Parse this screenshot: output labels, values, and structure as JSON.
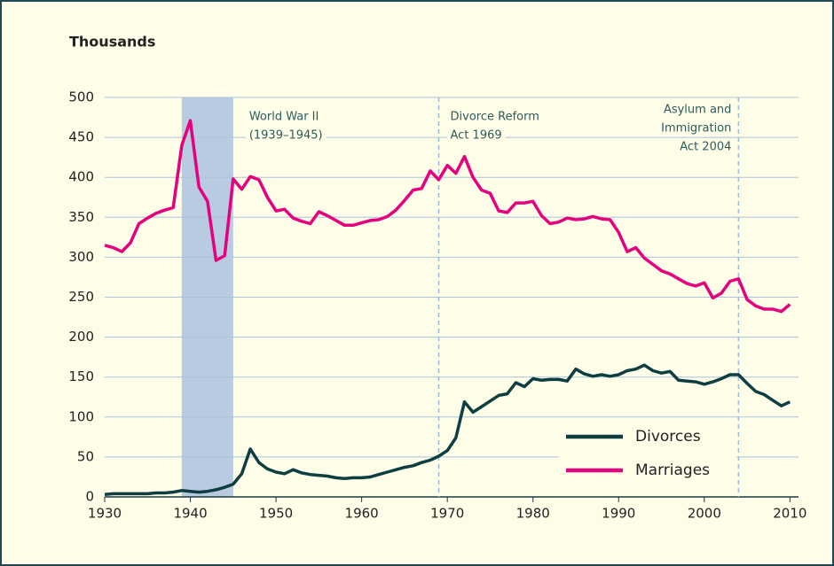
{
  "chart_data": {
    "type": "line",
    "title": "Thousands",
    "x": [
      1930,
      1931,
      1932,
      1933,
      1934,
      1935,
      1936,
      1937,
      1938,
      1939,
      1940,
      1941,
      1942,
      1943,
      1944,
      1945,
      1946,
      1947,
      1948,
      1949,
      1950,
      1951,
      1952,
      1953,
      1954,
      1955,
      1956,
      1957,
      1958,
      1959,
      1960,
      1961,
      1962,
      1963,
      1964,
      1965,
      1966,
      1967,
      1968,
      1969,
      1970,
      1971,
      1972,
      1973,
      1974,
      1975,
      1976,
      1977,
      1978,
      1979,
      1980,
      1981,
      1982,
      1983,
      1984,
      1985,
      1986,
      1987,
      1988,
      1989,
      1990,
      1991,
      1992,
      1993,
      1994,
      1995,
      1996,
      1997,
      1998,
      1999,
      2000,
      2001,
      2002,
      2003,
      2004,
      2005,
      2006,
      2007,
      2008,
      2009,
      2010
    ],
    "series": [
      {
        "name": "Divorces",
        "color": "#0e3e41",
        "values": [
          3,
          4,
          4,
          4,
          4,
          4,
          5,
          5,
          6,
          8,
          7,
          6,
          7,
          9,
          12,
          16,
          29,
          60,
          43,
          35,
          31,
          29,
          34,
          30,
          28,
          27,
          26,
          24,
          23,
          24,
          24,
          25,
          28,
          31,
          34,
          37,
          39,
          43,
          46,
          51,
          58,
          74,
          119,
          106,
          113,
          120,
          127,
          129,
          143,
          138,
          148,
          146,
          147,
          147,
          145,
          160,
          154,
          151,
          153,
          151,
          153,
          158,
          160,
          165,
          158,
          155,
          157,
          146,
          145,
          144,
          141,
          144,
          148,
          153,
          153,
          142,
          132,
          128,
          121,
          114,
          119
        ]
      },
      {
        "name": "Marriages",
        "color": "#e5007d",
        "values": [
          315,
          312,
          307,
          318,
          342,
          349,
          355,
          359,
          362,
          440,
          471,
          388,
          370,
          296,
          302,
          398,
          385,
          401,
          397,
          375,
          358,
          360,
          349,
          345,
          342,
          357,
          352,
          346,
          340,
          340,
          343,
          346,
          347,
          351,
          359,
          371,
          384,
          386,
          408,
          397,
          415,
          405,
          426,
          400,
          384,
          380,
          358,
          356,
          368,
          368,
          370,
          352,
          342,
          344,
          349,
          347,
          348,
          351,
          348,
          347,
          331,
          307,
          312,
          299,
          291,
          283,
          279,
          273,
          267,
          264,
          268,
          249,
          255,
          270,
          273,
          247,
          239,
          235,
          235,
          232,
          241
        ]
      }
    ],
    "xlim": [
      1930,
      2011
    ],
    "ylim": [
      0,
      500
    ],
    "xticks": [
      1930,
      1940,
      1950,
      1960,
      1970,
      1980,
      1990,
      2000,
      2010
    ],
    "yticks": [
      0,
      50,
      100,
      150,
      200,
      250,
      300,
      350,
      400,
      450,
      500
    ],
    "grid": true,
    "legend": "lower right",
    "shaded_span": {
      "start": 1939,
      "end": 1945,
      "color": "#b8cbe0",
      "lines": [
        "World War II",
        "(1939–1945)"
      ]
    },
    "events": [
      {
        "x": 1969,
        "lines": [
          "Divorce Reform",
          "Act 1969"
        ]
      },
      {
        "x": 2004,
        "lines": [
          "Asylum and",
          "Immigration",
          "Act 2004"
        ]
      }
    ]
  }
}
